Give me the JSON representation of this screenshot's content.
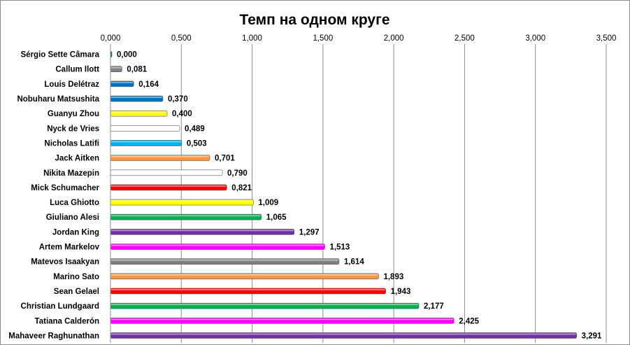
{
  "chart_data": {
    "type": "bar",
    "orientation": "horizontal",
    "title": "Темп на одном круге",
    "xlim": [
      0,
      3.5
    ],
    "tick_values": [
      0,
      0.5,
      1,
      1.5,
      2,
      2.5,
      3,
      3.5
    ],
    "tick_labels": [
      "0,000",
      "0,500",
      "1,000",
      "1,500",
      "2,000",
      "2,500",
      "3,000",
      "3,500"
    ],
    "axis_position": "top",
    "grid": true,
    "legend": "none",
    "categories": [
      "Sérgio Sette Câmara",
      "Callum Ilott",
      "Louis Delétraz",
      "Nobuharu Matsushita",
      "Guanyu Zhou",
      "Nyck de Vries",
      "Nicholas Latifi",
      "Jack Aitken",
      "Nikita Mazepin",
      "Mick Schumacher",
      "Luca Ghiotto",
      "Giuliano Alesi",
      "Jordan King",
      "Artem Markelov",
      "Matevos Isaakyan",
      "Marino Sato",
      "Sean Gelael",
      "Christian Lundgaard",
      "Tatiana Calderón",
      "Mahaveer Raghunathan"
    ],
    "values": [
      0.0,
      0.081,
      0.164,
      0.37,
      0.4,
      0.489,
      0.503,
      0.701,
      0.79,
      0.821,
      1.009,
      1.065,
      1.297,
      1.513,
      1.614,
      1.893,
      1.943,
      2.177,
      2.425,
      3.291
    ],
    "value_labels": [
      "0,000",
      "0,081",
      "0,164",
      "0,370",
      "0,400",
      "0,489",
      "0,503",
      "0,701",
      "0,790",
      "0,821",
      "1,009",
      "1,065",
      "1,297",
      "1,513",
      "1,614",
      "1,893",
      "1,943",
      "2,177",
      "2,425",
      "3,291"
    ],
    "colors": [
      "#0070C0",
      "#808080",
      "#0070C0",
      "#0070C0",
      "#FFFF00",
      "#FFFFFF",
      "#00B0F0",
      "#F79646",
      "#FFFFFF",
      "#FF0000",
      "#FFFF00",
      "#00B050",
      "#7030A0",
      "#FF00FF",
      "#808080",
      "#F79646",
      "#FF0000",
      "#00B050",
      "#FF00FF",
      "#7030A0"
    ]
  }
}
